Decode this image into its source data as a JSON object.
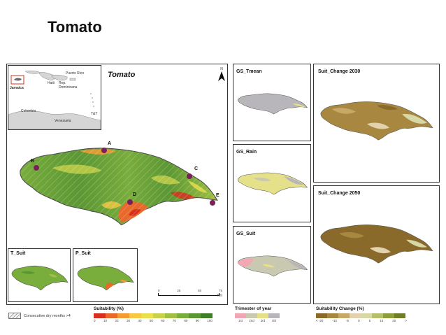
{
  "slide": {
    "title": "Tomato"
  },
  "main_map": {
    "title": "Tomato",
    "north_label": "N",
    "scale": {
      "ticks": [
        "0",
        "25",
        "50",
        "75"
      ],
      "unit": "Km"
    },
    "points": [
      {
        "label": "A",
        "lon": -77.7,
        "lat": 18.46
      },
      {
        "label": "B",
        "lon": -78.22,
        "lat": 18.38
      },
      {
        "label": "C",
        "lon": -76.78,
        "lat": 18.21
      },
      {
        "label": "D",
        "lon": -77.42,
        "lat": 17.95
      },
      {
        "label": "E",
        "lon": -76.36,
        "lat": 17.94
      }
    ]
  },
  "inset": {
    "labels": [
      "Haiti",
      "Puerto Rico",
      "Rep.\nDominicana",
      "Jamaica",
      "Colombia",
      "Venezuela",
      "T&T"
    ]
  },
  "panels": {
    "t_suit": "T_Suit",
    "p_suit": "P_Suit",
    "gs_tmean": "GS_Tmean",
    "gs_rain": "GS_Rain",
    "gs_suit": "GS_Suit",
    "suit_2030": "Suit_Change 2030",
    "suit_2050": "Suit_Change 2050"
  },
  "legends": {
    "dry": {
      "text": "Consecutive dry months >4"
    },
    "suitability": {
      "title": "Suitability (%)",
      "ticks": [
        "0",
        "10",
        "20",
        "30",
        "40",
        "50",
        "60",
        "70",
        "80",
        "90",
        "100"
      ],
      "colors": [
        "#d7301f",
        "#e8692a",
        "#f39c33",
        "#f7c843",
        "#e9e04c",
        "#c8d24a",
        "#a0c043",
        "#79ad3c",
        "#5b9733",
        "#3f7f2a"
      ]
    },
    "trimester": {
      "title": "Trimester of year",
      "ticks": [
        "1st",
        "2nd",
        "3rd",
        "4th"
      ],
      "colors": [
        "#f2a7b4",
        "#c9c8b0",
        "#e5e08a",
        "#b9b6bb"
      ]
    },
    "change": {
      "title": "Suitability Change (%)",
      "ticks": [
        "< -20",
        "-15",
        "-5",
        "0",
        "5",
        "15",
        "20",
        ">"
      ],
      "colors": [
        "#8a6a2a",
        "#a88740",
        "#c6a867",
        "#e2d2ad",
        "#d7d8a6",
        "#b6c06b",
        "#8f9e3c",
        "#6f7f28"
      ]
    }
  }
}
